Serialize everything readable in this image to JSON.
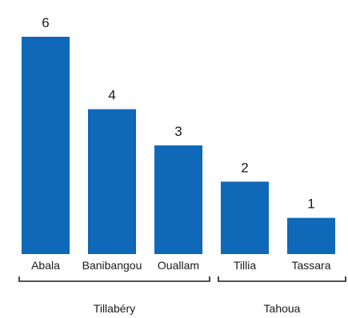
{
  "chart_data": {
    "type": "bar",
    "title": "",
    "xlabel": "",
    "ylabel": "",
    "ylim": [
      0,
      6
    ],
    "grid": false,
    "legend": "none",
    "bar_color": "#1068b8",
    "categories": [
      "Abala",
      "Banibangou",
      "Ouallam",
      "Tillia",
      "Tassara"
    ],
    "values": [
      6,
      4,
      3,
      2,
      1
    ],
    "data_labels": [
      "6",
      "4",
      "3",
      "2",
      "1"
    ],
    "groups": [
      {
        "label": "Tillabéry",
        "categories": [
          "Abala",
          "Banibangou",
          "Ouallam"
        ]
      },
      {
        "label": "Tahoua",
        "categories": [
          "Tillia",
          "Tassara"
        ]
      }
    ]
  }
}
